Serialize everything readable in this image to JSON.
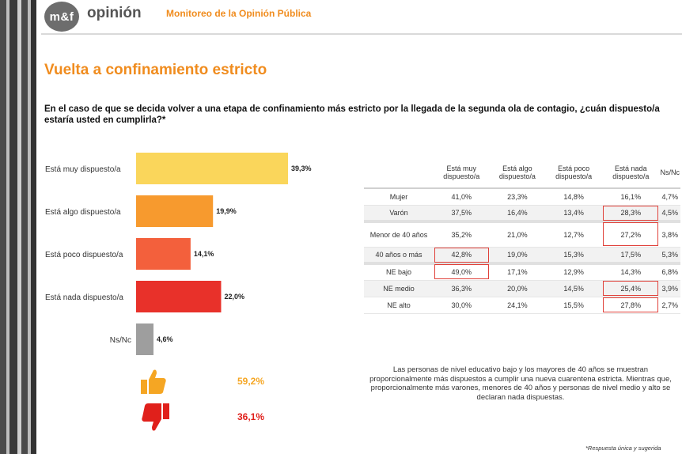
{
  "brand": {
    "logo_text": "m&f",
    "logo_word": "opinión",
    "subtitle": "Monitoreo de la Opinión Pública"
  },
  "title": "Vuelta a confinamiento estricto",
  "question": "En el caso de que se decida volver a una etapa de confinamiento más estricto por la llegada de la segunda ola de contagio, ¿cuán dispuesto/a estaría usted en cumplirla?*",
  "colors": {
    "accent": "#f08c1e",
    "positive": "#f5a623",
    "negative": "#e0201b"
  },
  "chart_data": {
    "type": "bar",
    "orientation": "horizontal",
    "categories": [
      "Está muy dispuesto/a",
      "Está algo dispuesto/a",
      "Está poco dispuesto/a",
      "Está nada dispuesto/a",
      "Ns/Nc"
    ],
    "values": [
      39.3,
      19.9,
      14.1,
      22.0,
      4.6
    ],
    "value_labels": [
      "39,3%",
      "19,9%",
      "14,1%",
      "22,0%",
      "4,6%"
    ],
    "colors": [
      "#fad65b",
      "#f79a2e",
      "#f3603c",
      "#e8312a",
      "#9e9e9e"
    ],
    "xlim": [
      0,
      45
    ]
  },
  "summary": {
    "dispuestos": {
      "icon": "thumbs-up-icon",
      "value": "59,2%"
    },
    "no_dispuestos": {
      "icon": "thumbs-down-icon",
      "value": "36,1%"
    }
  },
  "table": {
    "columns": [
      "Está muy dispuesto/a",
      "Está algo dispuesto/a",
      "Está poco dispuesto/a",
      "Está nada dispuesto/a",
      "Ns/Nc"
    ],
    "rows": [
      {
        "label": "Mujer",
        "values": [
          "41,0%",
          "23,3%",
          "14,8%",
          "16,1%",
          "4,7%"
        ]
      },
      {
        "label": "Varón",
        "values": [
          "37,5%",
          "16,4%",
          "13,4%",
          "28,3%",
          "4,5%"
        ]
      },
      {
        "label": "Menor de 40 años",
        "values": [
          "35,2%",
          "21,0%",
          "12,7%",
          "27,2%",
          "3,8%"
        ]
      },
      {
        "label": "40 años o más",
        "values": [
          "42,8%",
          "19,0%",
          "15,3%",
          "17,5%",
          "5,3%"
        ]
      },
      {
        "label": "NE bajo",
        "values": [
          "49,0%",
          "17,1%",
          "12,9%",
          "14,3%",
          "6,8%"
        ]
      },
      {
        "label": "NE medio",
        "values": [
          "36,3%",
          "20,0%",
          "14,5%",
          "25,4%",
          "3,9%"
        ]
      },
      {
        "label": "NE alto",
        "values": [
          "30,0%",
          "24,1%",
          "15,5%",
          "27,8%",
          "2,7%"
        ]
      }
    ]
  },
  "note": "Las personas de nivel educativo bajo y los mayores de 40 años se muestran proporcionalmente más dispuestos a cumplir una nueva cuarentena estricta. Mientras que, proporcionalmente más varones, menores de 40 años y personas de nivel medio y alto se declaran nada dispuestas.",
  "footnote": "*Respuesta única y sugerida"
}
